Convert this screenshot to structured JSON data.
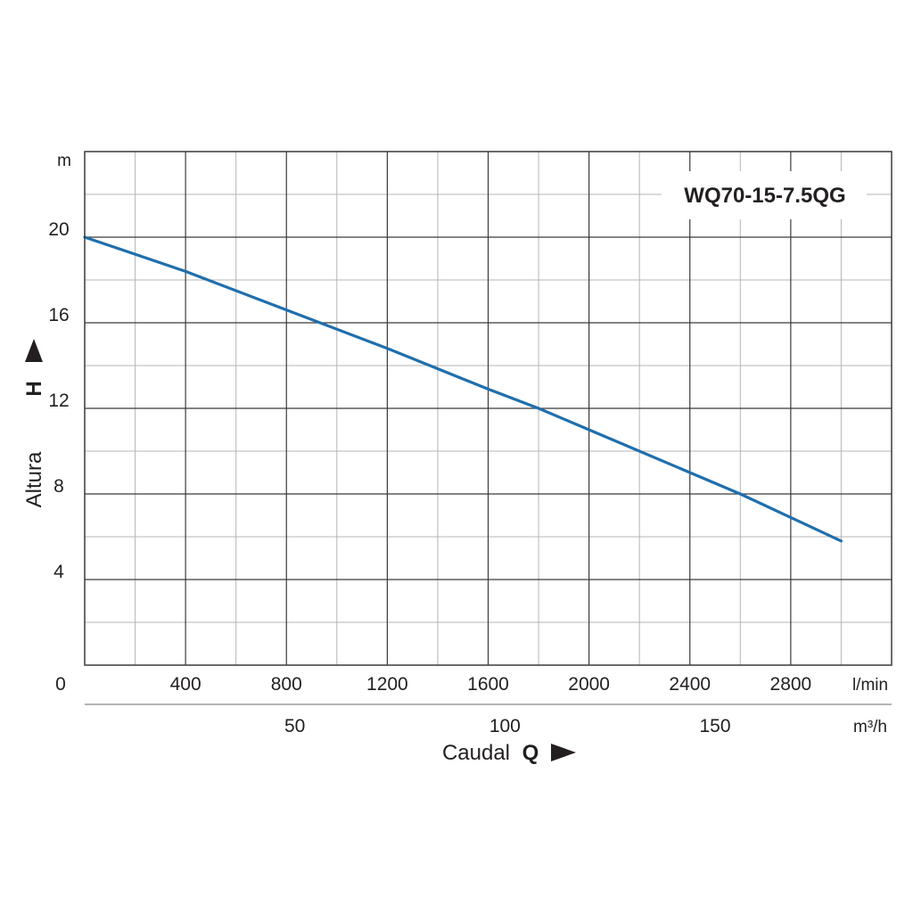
{
  "chart_data": {
    "type": "line",
    "title": "WQ70-15-7.5QG",
    "xlabel": "Caudal",
    "xsymbol": "Q",
    "ylabel": "Altura",
    "ysymbol": "H",
    "xunit": "l/min",
    "x2unit": "m³/h",
    "yunit": "m",
    "xlim": [
      0,
      3200
    ],
    "ylim": [
      0,
      24
    ],
    "origin_label": "0",
    "x_ticks": [
      400,
      800,
      1200,
      1600,
      2000,
      2400,
      2800
    ],
    "x_tick_labels": [
      "400",
      "800",
      "1200",
      "1600",
      "2000",
      "2400",
      "2800"
    ],
    "x2_ticks": [
      50,
      100,
      150
    ],
    "x2_tick_labels": [
      "50",
      "100",
      "150"
    ],
    "y_ticks": [
      4,
      8,
      12,
      16,
      20
    ],
    "y_tick_labels": [
      "4",
      "8",
      "12",
      "16",
      "20"
    ],
    "grid": true,
    "colors": {
      "curve": "#1f6fad",
      "grid_major": "#3a3a3a",
      "grid_minor": "#b5b5b5",
      "text": "#231f20"
    },
    "series": [
      {
        "x": [
          0,
          400,
          800,
          1200,
          1600,
          1800,
          2000,
          2400,
          2600,
          2800,
          3000
        ],
        "y": [
          20,
          18.4,
          16.6,
          14.8,
          12.9,
          12.0,
          11.0,
          9.0,
          8.0,
          6.9,
          5.8
        ]
      }
    ]
  }
}
